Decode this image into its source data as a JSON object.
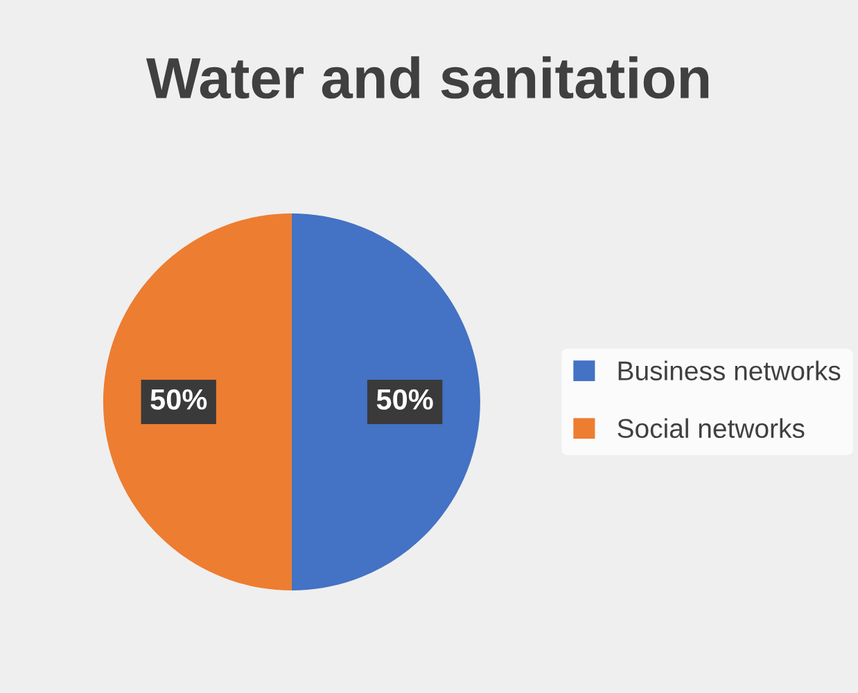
{
  "chart_data": {
    "type": "pie",
    "title": "Water and sanitation",
    "categories": [
      "Business networks",
      "Social networks"
    ],
    "values": [
      50,
      50
    ],
    "colors": [
      "#4472c4",
      "#ed7d31"
    ],
    "value_labels": [
      "50%",
      "50%"
    ],
    "legend": "right"
  }
}
